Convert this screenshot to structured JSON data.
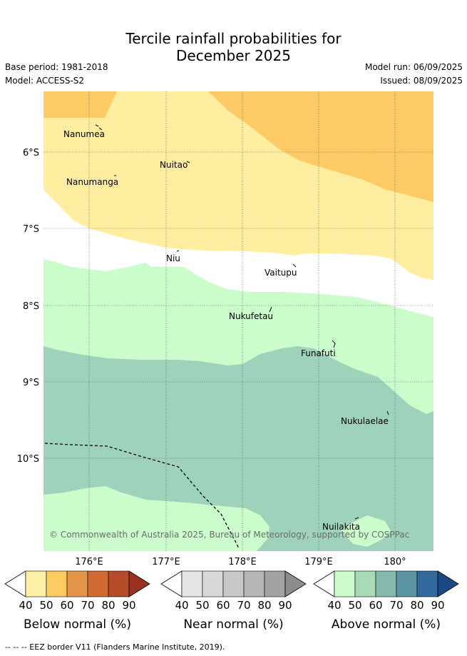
{
  "header": {
    "title_line1": "Tercile rainfall probabilities for",
    "title_line2": "December 2025",
    "base_period": "Base period: 1981-2018",
    "model": "Model: ACCESS-S2",
    "model_run": "Model run: 06/09/2025",
    "issued": "Issued: 08/09/2025"
  },
  "map": {
    "lat_labels": [
      "6°S",
      "7°S",
      "8°S",
      "9°S",
      "10°S"
    ],
    "lon_labels": [
      "176°E",
      "177°E",
      "178°E",
      "179°E",
      "180°"
    ],
    "islands": [
      "Nanumea",
      "Nuitao",
      "Nanumanga",
      "Niu",
      "Vaitupu",
      "Nukufetau",
      "Funafuti",
      "Nukulaelae",
      "Nuilakita"
    ],
    "copyright": "© Commonwealth of Australia 2025, Bureau of Meteorology, supported by COSPPac"
  },
  "legends": [
    {
      "title": "Below normal (%)",
      "ticks": [
        "40",
        "50",
        "60",
        "70",
        "80",
        "90"
      ],
      "colors": [
        "#fff0a8",
        "#fecb63",
        "#e3964a",
        "#d06a33",
        "#b44c2a",
        "#9a3222"
      ]
    },
    {
      "title": "Near normal (%)",
      "ticks": [
        "40",
        "50",
        "60",
        "70",
        "80",
        "90"
      ],
      "colors": [
        "#e5e5e5",
        "#d8d8d8",
        "#c8c8c8",
        "#b5b5b5",
        "#a2a2a2",
        "#8c8c8c"
      ]
    },
    {
      "title": "Above normal (%)",
      "ticks": [
        "40",
        "50",
        "60",
        "70",
        "80",
        "90"
      ],
      "colors": [
        "#cdfccc",
        "#a7dbb8",
        "#86b8ac",
        "#5b95a3",
        "#34699e",
        "#1a4a85"
      ]
    }
  ],
  "footer": "--  --  -- EEZ border V11 (Flanders Marine Institute, 2019).",
  "colors": {
    "below_40": "#ffeda0",
    "below_50": "#feca66",
    "above_40": "#cbfccb",
    "above_50": "#9fd2ba"
  }
}
